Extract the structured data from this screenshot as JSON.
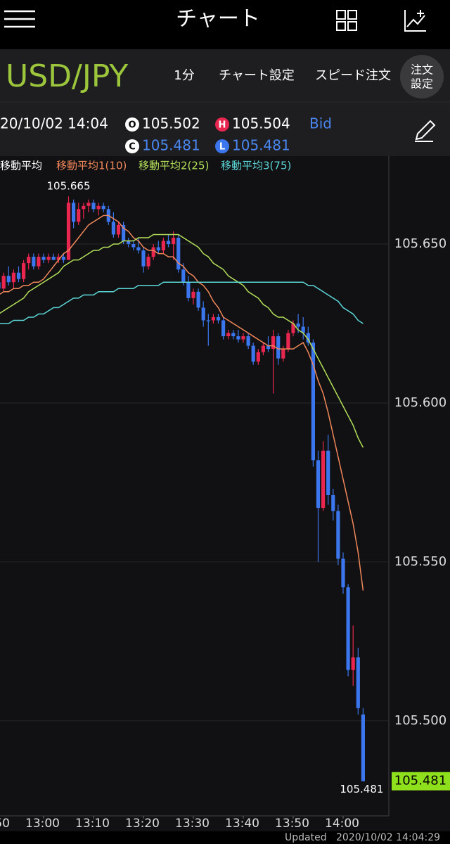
{
  "header": {
    "title": "チャート"
  },
  "toolbar": {
    "symbol": "USD/JPY",
    "interval": "1分",
    "chart_settings": "チャート設定",
    "speed_order": "スピード注文",
    "order_settings": [
      "注文",
      "設定"
    ]
  },
  "info": {
    "datetime": "20/10/02 14:04",
    "open_icon": "O",
    "high_icon": "H",
    "close_icon": "C",
    "low_icon": "L",
    "side": "Bid"
  },
  "footer": {
    "label": "Updated",
    "timestamp": "2020/10/02 14:04:29"
  },
  "chart_data": {
    "type": "candlestick",
    "legend_title": "移動平均",
    "up_color": "#e8264f",
    "down_color": "#3b76ee",
    "categories": [
      "12:51",
      "12:52",
      "12:53",
      "12:54",
      "12:55",
      "12:56",
      "12:57",
      "12:58",
      "12:59",
      "13:00",
      "13:01",
      "13:02",
      "13:03",
      "13:04",
      "13:05",
      "13:06",
      "13:07",
      "13:08",
      "13:09",
      "13:10",
      "13:11",
      "13:12",
      "13:13",
      "13:14",
      "13:15",
      "13:16",
      "13:17",
      "13:18",
      "13:19",
      "13:20",
      "13:21",
      "13:22",
      "13:23",
      "13:24",
      "13:25",
      "13:26",
      "13:27",
      "13:28",
      "13:29",
      "13:30",
      "13:31",
      "13:32",
      "13:33",
      "13:34",
      "13:35",
      "13:36",
      "13:37",
      "13:38",
      "13:39",
      "13:40",
      "13:41",
      "13:42",
      "13:43",
      "13:44",
      "13:45",
      "13:46",
      "13:47",
      "13:48",
      "13:49",
      "13:50",
      "13:51",
      "13:52",
      "13:53",
      "13:54",
      "13:55",
      "13:56",
      "13:57",
      "13:58",
      "13:59",
      "14:00",
      "14:01",
      "14:02",
      "14:03",
      "14:04"
    ],
    "open": [
      105.638,
      105.636,
      105.64,
      105.638,
      105.641,
      105.639,
      105.644,
      105.646,
      105.643,
      105.646,
      105.645,
      105.646,
      105.645,
      105.646,
      105.645,
      105.663,
      105.657,
      105.661,
      105.662,
      105.663,
      105.661,
      105.662,
      105.661,
      105.657,
      105.653,
      105.656,
      105.651,
      105.65,
      105.649,
      105.648,
      105.643,
      105.646,
      105.649,
      105.648,
      105.651,
      105.65,
      105.652,
      105.642,
      105.638,
      105.633,
      105.635,
      105.63,
      105.626,
      105.626,
      105.627,
      105.626,
      105.621,
      105.622,
      105.621,
      105.62,
      105.621,
      105.618,
      105.613,
      105.616,
      105.618,
      105.617,
      105.621,
      105.614,
      105.617,
      105.622,
      105.625,
      105.624,
      105.622,
      105.619,
      105.582,
      105.567,
      105.585,
      105.571,
      105.566,
      105.551,
      105.542,
      105.516,
      105.52,
      105.502
    ],
    "high": [
      105.641,
      105.641,
      105.643,
      105.642,
      105.643,
      105.645,
      105.647,
      105.647,
      105.647,
      105.647,
      105.647,
      105.647,
      105.647,
      105.647,
      105.665,
      105.664,
      105.663,
      105.663,
      105.664,
      105.664,
      105.663,
      105.663,
      105.662,
      105.66,
      105.657,
      105.657,
      105.652,
      105.651,
      105.652,
      105.649,
      105.647,
      105.65,
      105.651,
      105.652,
      105.653,
      105.654,
      105.653,
      105.644,
      105.64,
      105.636,
      105.636,
      105.632,
      105.628,
      105.628,
      105.628,
      105.627,
      105.623,
      105.623,
      105.623,
      105.622,
      105.622,
      105.619,
      105.617,
      105.619,
      105.621,
      105.623,
      105.622,
      105.618,
      105.623,
      105.626,
      105.628,
      105.627,
      105.624,
      105.62,
      105.585,
      105.588,
      105.59,
      105.573,
      105.568,
      105.553,
      105.543,
      105.53,
      105.523,
      105.504
    ],
    "low": [
      105.634,
      105.635,
      105.637,
      105.636,
      105.638,
      105.638,
      105.642,
      105.642,
      105.642,
      105.644,
      105.644,
      105.645,
      105.644,
      105.644,
      105.645,
      105.655,
      105.656,
      105.658,
      105.66,
      105.66,
      105.659,
      105.66,
      105.656,
      105.652,
      105.652,
      105.65,
      105.649,
      105.648,
      105.647,
      105.641,
      105.642,
      105.645,
      105.647,
      105.647,
      105.649,
      105.645,
      105.641,
      105.637,
      105.632,
      105.631,
      105.629,
      105.624,
      105.618,
      105.625,
      105.625,
      105.62,
      105.62,
      105.62,
      105.619,
      105.619,
      105.617,
      105.612,
      105.612,
      105.615,
      105.616,
      105.603,
      105.612,
      105.613,
      105.616,
      105.621,
      105.622,
      105.62,
      105.618,
      105.58,
      105.55,
      105.566,
      105.568,
      105.563,
      105.549,
      105.54,
      105.514,
      105.511,
      105.502,
      105.481
    ],
    "close": [
      105.636,
      105.64,
      105.638,
      105.641,
      105.639,
      105.644,
      105.646,
      105.643,
      105.646,
      105.645,
      105.646,
      105.645,
      105.646,
      105.645,
      105.663,
      105.657,
      105.661,
      105.662,
      105.663,
      105.661,
      105.662,
      105.661,
      105.657,
      105.653,
      105.656,
      105.651,
      105.65,
      105.649,
      105.648,
      105.643,
      105.646,
      105.649,
      105.648,
      105.651,
      105.65,
      105.652,
      105.642,
      105.638,
      105.633,
      105.635,
      105.63,
      105.626,
      105.626,
      105.627,
      105.626,
      105.621,
      105.622,
      105.621,
      105.62,
      105.621,
      105.618,
      105.613,
      105.616,
      105.618,
      105.617,
      105.621,
      105.614,
      105.617,
      105.622,
      105.625,
      105.624,
      105.622,
      105.619,
      105.582,
      105.567,
      105.585,
      105.571,
      105.566,
      105.551,
      105.542,
      105.516,
      105.52,
      105.504,
      105.481
    ],
    "lines": [
      {
        "name": "移動平均1(10)",
        "color": "#f0875a",
        "values": [
          105.634,
          105.635,
          105.635,
          105.636,
          105.636,
          105.637,
          105.637,
          105.638,
          105.638,
          105.639,
          105.641,
          105.643,
          105.645,
          105.647,
          105.648,
          105.65,
          105.652,
          105.654,
          105.656,
          105.657,
          105.658,
          105.659,
          105.659,
          105.658,
          105.657,
          105.655,
          105.654,
          105.652,
          105.651,
          105.649,
          105.648,
          105.648,
          105.647,
          105.647,
          105.646,
          105.646,
          105.644,
          105.643,
          105.641,
          105.64,
          105.638,
          105.637,
          105.635,
          105.632,
          105.63,
          105.627,
          105.626,
          105.625,
          105.624,
          105.623,
          105.622,
          105.621,
          105.62,
          105.619,
          105.618,
          105.618,
          105.617,
          105.617,
          105.617,
          105.617,
          105.618,
          105.619,
          105.616,
          105.612,
          105.607,
          105.603,
          105.597,
          105.59,
          105.583,
          105.576,
          105.569,
          105.562,
          105.553,
          105.541
        ]
      },
      {
        "name": "移動平均2(25)",
        "color": "#b4e05a",
        "values": [
          105.628,
          105.629,
          105.63,
          105.631,
          105.632,
          105.633,
          105.635,
          105.636,
          105.637,
          105.638,
          105.639,
          105.64,
          105.641,
          105.643,
          105.644,
          105.645,
          105.645,
          105.646,
          105.647,
          105.648,
          105.648,
          105.649,
          105.649,
          105.65,
          105.65,
          105.651,
          105.651,
          105.651,
          105.652,
          105.652,
          105.652,
          105.653,
          105.653,
          105.653,
          105.653,
          105.653,
          105.653,
          105.652,
          105.651,
          105.65,
          105.649,
          105.647,
          105.646,
          105.644,
          105.643,
          105.642,
          105.64,
          105.639,
          105.638,
          105.637,
          105.635,
          105.634,
          105.633,
          105.631,
          105.63,
          105.628,
          105.627,
          105.627,
          105.626,
          105.625,
          105.623,
          105.622,
          105.62,
          105.617,
          105.614,
          105.611,
          105.608,
          105.605,
          105.602,
          105.599,
          105.596,
          105.593,
          105.589,
          105.586
        ]
      },
      {
        "name": "移動平均3(75)",
        "color": "#5cd6d6",
        "values": [
          105.625,
          105.625,
          105.625,
          105.626,
          105.626,
          105.626,
          105.627,
          105.627,
          105.628,
          105.628,
          105.629,
          105.63,
          105.63,
          105.631,
          105.632,
          105.633,
          105.633,
          105.634,
          105.634,
          105.634,
          105.635,
          105.635,
          105.635,
          105.635,
          105.636,
          105.636,
          105.636,
          105.636,
          105.637,
          105.637,
          105.637,
          105.637,
          105.637,
          105.638,
          105.638,
          105.638,
          105.638,
          105.638,
          105.638,
          105.638,
          105.638,
          105.638,
          105.638,
          105.638,
          105.638,
          105.638,
          105.638,
          105.638,
          105.638,
          105.638,
          105.638,
          105.638,
          105.638,
          105.638,
          105.638,
          105.638,
          105.638,
          105.638,
          105.638,
          105.638,
          105.638,
          105.638,
          105.637,
          105.637,
          105.636,
          105.635,
          105.634,
          105.633,
          105.632,
          105.63,
          105.629,
          105.628,
          105.626,
          105.625
        ]
      }
    ],
    "ylim": [
      105.4701,
      105.677
    ],
    "yticks": [
      {
        "value": 105.65,
        "label": "105.650"
      },
      {
        "value": 105.6,
        "label": "105.600"
      },
      {
        "value": 105.55,
        "label": "105.550"
      },
      {
        "value": 105.5,
        "label": "105.500"
      }
    ],
    "xticks": [
      {
        "value": "12:50",
        "label": "50"
      },
      "13:00",
      "13:10",
      "13:20",
      "13:30",
      "13:40",
      "13:50",
      "14:00"
    ],
    "grid": true
  }
}
